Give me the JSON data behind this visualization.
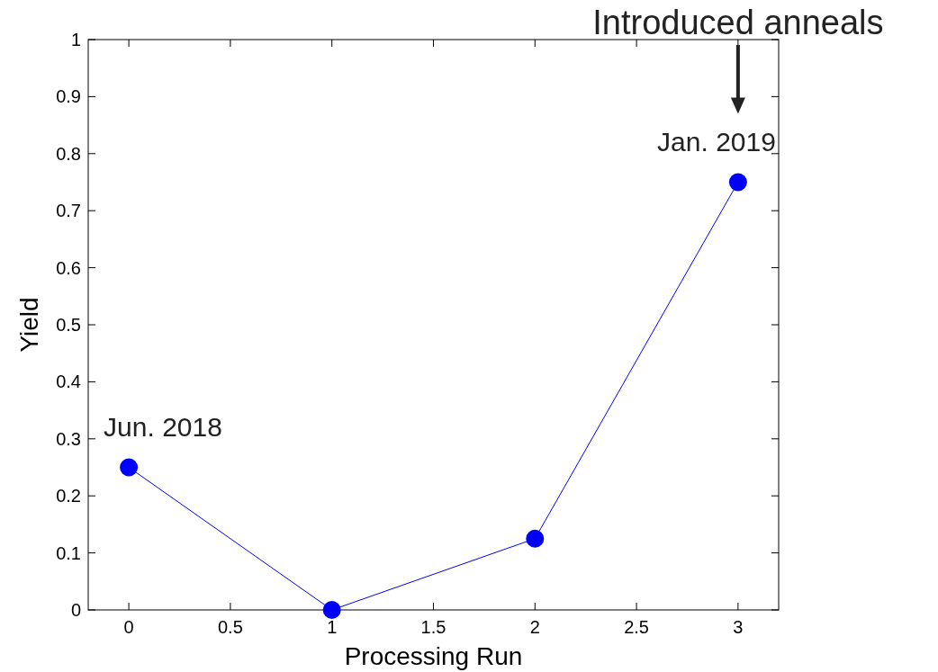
{
  "chart_data": {
    "type": "line",
    "xlabel": "Processing Run",
    "ylabel": "Yield",
    "x": [
      0,
      1,
      2,
      3
    ],
    "series": [
      {
        "color": "#0000ff",
        "values": [
          0.25,
          0,
          0.125,
          0.75
        ]
      }
    ],
    "xlim": [
      -0.2,
      3.2
    ],
    "xticks": [
      0,
      0.5,
      1,
      1.5,
      2,
      2.5,
      3
    ],
    "ylim": [
      0,
      1
    ],
    "yticks": [
      0,
      0.1,
      0.2,
      0.3,
      0.4,
      0.5,
      0.6,
      0.7,
      0.8,
      0.9,
      1
    ],
    "marker": "circle",
    "line_style": "solid",
    "grid": false,
    "annotations": [
      {
        "text": "Jun. 2018",
        "x": 0,
        "y": 0.25
      },
      {
        "text": "Jan. 2019",
        "x": 3,
        "y": 0.75
      },
      "Introduced anneals"
    ]
  }
}
